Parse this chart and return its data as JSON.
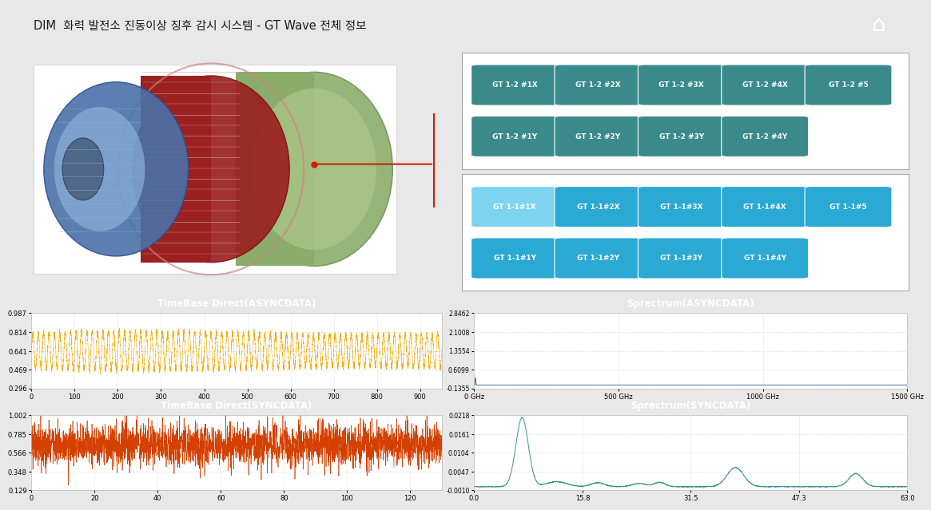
{
  "title": "DIM  화력 발전소 진동이상 징후 감시 시스템 - GT Wave 전체 정보",
  "header_bg": "#d4d4d4",
  "header_text_color": "#1a1a1a",
  "background_color": "#e8e8e8",
  "panel_bg": "#ffffff",
  "teal_button_color": "#3a8a8c",
  "blue_button_color": "#29a9d4",
  "light_blue_button": "#7fd4ef",
  "button_text_color": "#ffffff",
  "gt12_row1": [
    "GT 1-2 #1X",
    "GT 1-2 #2X",
    "GT 1-2 #3X",
    "GT 1-2 #4X",
    "GT 1-2 #5"
  ],
  "gt12_row2": [
    "GT 1-2 #1Y",
    "GT 1-2 #2Y",
    "GT 1-2 #3Y",
    "GT 1-2 #4Y"
  ],
  "gt11_row1": [
    "GT 1-1#1X",
    "GT 1-1#2X",
    "GT 1-1#3X",
    "GT 1-1#4X",
    "GT 1-1#5"
  ],
  "gt11_row2": [
    "GT 1-1#1Y",
    "GT 1-1#2Y",
    "GT 1-1#3Y",
    "GT 1-1#4Y"
  ],
  "gt11_row1_colors": [
    "#7fd4ef",
    "#29a9d4",
    "#29a9d4",
    "#29a9d4",
    "#29a9d4"
  ],
  "gt11_row2_colors": [
    "#29a9d4",
    "#29a9d4",
    "#29a9d4",
    "#29a9d4"
  ],
  "chart_header_bg": "#1e4d78",
  "chart_header_text": "#ffffff",
  "async_title": "TimeBase Direct(ASYNCDATA)",
  "sync_title": "TimeBase Direct(SYNCDATA)",
  "spec_async_title": "Sprectrum(ASYNCDATA)",
  "spec_sync_title": "Sprectrum(SYNCDATA)",
  "async_ylim": [
    0.296,
    0.987
  ],
  "async_yticks": [
    0.296,
    0.469,
    0.641,
    0.814,
    0.987
  ],
  "async_xlim": [
    0,
    950
  ],
  "async_xticks": [
    0,
    100,
    200,
    300,
    400,
    500,
    600,
    700,
    800,
    900
  ],
  "sync_ylim": [
    0.129,
    1.002
  ],
  "sync_yticks": [
    0.129,
    0.348,
    0.566,
    0.785,
    1.002
  ],
  "sync_xlim": [
    0,
    130
  ],
  "sync_xticks": [
    0,
    20,
    40,
    60,
    80,
    100,
    120
  ],
  "spec_async_ylim": [
    -0.1355,
    2.8462
  ],
  "spec_async_yticks": [
    -0.1355,
    0.6099,
    1.3554,
    2.1008,
    2.8462
  ],
  "spec_async_xlim": [
    0,
    1500
  ],
  "spec_async_xtick_vals": [
    0,
    500,
    1000,
    1500
  ],
  "spec_async_xtick_labels": [
    "0 GHz",
    "500 GHz",
    "1000 GHz",
    "1500 GHz"
  ],
  "spec_sync_ylim": [
    -0.001,
    0.0218
  ],
  "spec_sync_yticks": [
    -0.001,
    0.0047,
    0.0104,
    0.0161,
    0.0218
  ],
  "spec_sync_xlim": [
    0.0,
    63.0
  ],
  "spec_sync_xticks": [
    0.0,
    15.8,
    31.5,
    47.3,
    63.0
  ],
  "async_line_color": "#f5a800",
  "sync_line_color": "#d44000",
  "spec_async_line_color": "#2a6090",
  "spec_sync_line_color": "#3a9090",
  "home_bg": "#888888",
  "connector_color": "#cc0000",
  "border_color": "#aaaaaa"
}
